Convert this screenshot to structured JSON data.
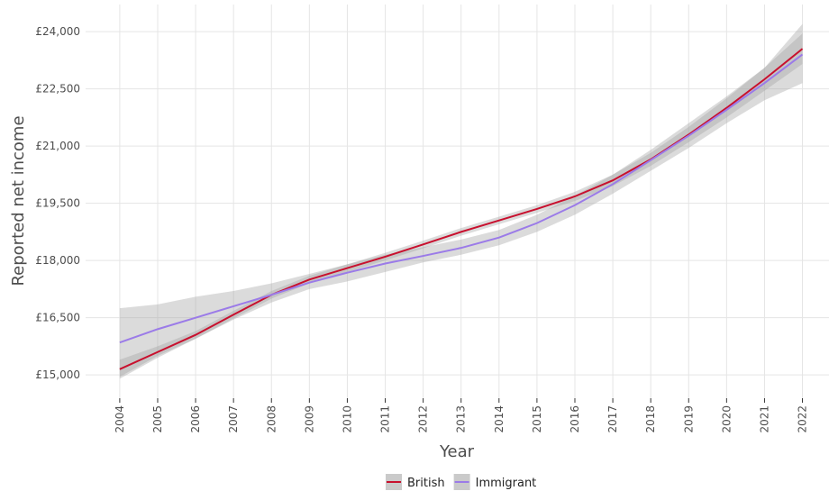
{
  "chart_data": {
    "type": "line",
    "x_label": "Year",
    "y_label": "Reported net income",
    "x": [
      2004,
      2005,
      2006,
      2007,
      2008,
      2009,
      2010,
      2011,
      2012,
      2013,
      2014,
      2015,
      2016,
      2017,
      2018,
      2019,
      2020,
      2021,
      2022
    ],
    "xlim": [
      2003.1,
      2022.7
    ],
    "xticks": [
      2004,
      2005,
      2006,
      2007,
      2008,
      2009,
      2010,
      2011,
      2012,
      2013,
      2014,
      2015,
      2016,
      2017,
      2018,
      2019,
      2020,
      2021,
      2022
    ],
    "ylim": [
      14390,
      24710
    ],
    "yticks": [
      {
        "value": 15000,
        "label": "£15,000"
      },
      {
        "value": 16500,
        "label": "£16,500"
      },
      {
        "value": 18000,
        "label": "£18,000"
      },
      {
        "value": 19500,
        "label": "£19,500"
      },
      {
        "value": 21000,
        "label": "£21,000"
      },
      {
        "value": 22500,
        "label": "£22,500"
      },
      {
        "value": 24000,
        "label": "£24,000"
      }
    ],
    "grid": true,
    "band_color": "#a6a6a6",
    "series": [
      {
        "name": "British",
        "color": "#c8102e",
        "values": [
          15150,
          15600,
          16050,
          16580,
          17100,
          17500,
          17800,
          18100,
          18420,
          18750,
          19050,
          19350,
          19680,
          20100,
          20650,
          21300,
          22000,
          22750,
          23550
        ],
        "lower": [
          14900,
          15450,
          15950,
          16480,
          17000,
          17400,
          17700,
          18000,
          18320,
          18650,
          18950,
          19250,
          19560,
          19950,
          20480,
          21100,
          21750,
          22450,
          23150
        ],
        "upper": [
          15400,
          15750,
          16150,
          16680,
          17200,
          17600,
          17900,
          18200,
          18520,
          18850,
          19150,
          19450,
          19800,
          20250,
          20820,
          21500,
          22250,
          23050,
          23950
        ]
      },
      {
        "name": "Immigrant",
        "color": "#9b7be8",
        "values": [
          15850,
          16200,
          16500,
          16800,
          17100,
          17420,
          17680,
          17920,
          18120,
          18330,
          18600,
          18980,
          19450,
          20000,
          20630,
          21270,
          21950,
          22650,
          23400
        ],
        "lower": [
          14950,
          15500,
          15950,
          16450,
          16900,
          17250,
          17450,
          17700,
          17950,
          18150,
          18400,
          18750,
          19200,
          19750,
          20350,
          20950,
          21600,
          22200,
          22650
        ],
        "upper": [
          16750,
          16850,
          17050,
          17200,
          17400,
          17650,
          17900,
          18150,
          18350,
          18550,
          18800,
          19200,
          19700,
          20250,
          20900,
          21600,
          22300,
          23050,
          24200
        ]
      }
    ]
  }
}
